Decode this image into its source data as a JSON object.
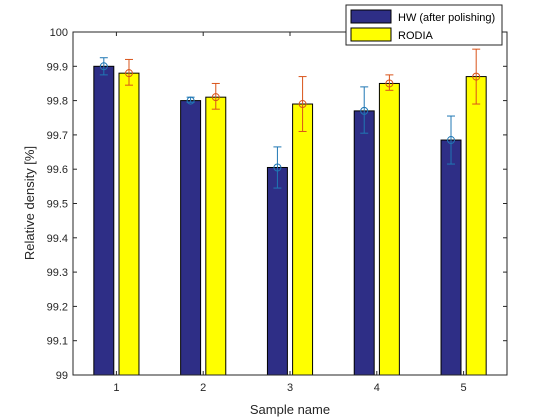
{
  "chart_data": {
    "type": "bar",
    "categories": [
      "1",
      "2",
      "3",
      "4",
      "5"
    ],
    "xlabel": "Sample name",
    "ylabel": "Relative density [%]",
    "ylim": [
      99,
      100
    ],
    "yticks": [
      99,
      99.1,
      99.2,
      99.3,
      99.4,
      99.5,
      99.6,
      99.7,
      99.8,
      99.9,
      100
    ],
    "grid": false,
    "legend_position": "top-right",
    "series": [
      {
        "name": "HW (after polishing)",
        "color": "#2e2e86",
        "errorbar_color": "#1f77b4",
        "values": [
          99.9,
          99.8,
          99.605,
          99.77,
          99.685
        ],
        "err_low": [
          99.875,
          99.795,
          99.545,
          99.705,
          99.615
        ],
        "err_high": [
          99.925,
          99.81,
          99.665,
          99.84,
          99.755
        ]
      },
      {
        "name": "RODIA",
        "color": "#ffff00",
        "errorbar_color": "#d95319",
        "values": [
          99.88,
          99.81,
          99.79,
          99.85,
          99.87
        ],
        "err_low": [
          99.845,
          99.775,
          99.71,
          99.83,
          99.79
        ],
        "err_high": [
          99.92,
          99.85,
          99.87,
          99.875,
          99.95
        ]
      }
    ]
  }
}
